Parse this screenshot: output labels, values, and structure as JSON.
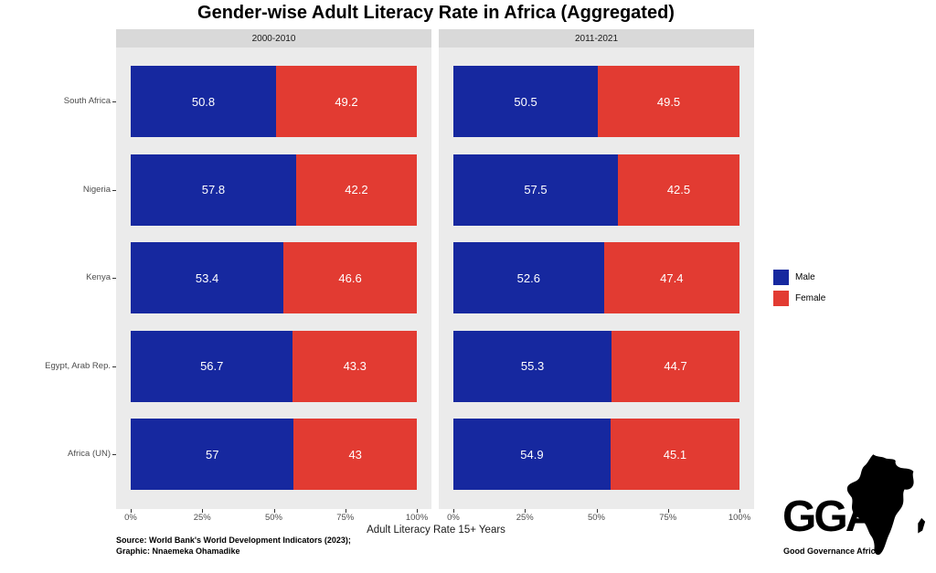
{
  "title": "Gender-wise Adult Literacy Rate in Africa (Aggregated)",
  "chart_data": {
    "type": "bar",
    "orientation": "horizontal",
    "stacked": true,
    "unit": "%",
    "xlabel": "Adult Literacy Rate 15+ Years",
    "xlim": [
      0,
      100
    ],
    "x_ticks": [
      "0%",
      "25%",
      "50%",
      "75%",
      "100%"
    ],
    "categories": [
      "South Africa",
      "Nigeria",
      "Kenya",
      "Egypt, Arab Rep.",
      "Africa (UN)"
    ],
    "facets": [
      {
        "label": "2000-2010",
        "series": [
          {
            "name": "Male",
            "color": "#16289F",
            "values": [
              50.8,
              57.8,
              53.4,
              56.7,
              57
            ]
          },
          {
            "name": "Female",
            "color": "#E23B32",
            "values": [
              49.2,
              42.2,
              46.6,
              43.3,
              43
            ]
          }
        ]
      },
      {
        "label": "2011-2021",
        "series": [
          {
            "name": "Male",
            "color": "#16289F",
            "values": [
              50.5,
              57.5,
              52.6,
              55.3,
              54.9
            ]
          },
          {
            "name": "Female",
            "color": "#E23B32",
            "values": [
              49.5,
              42.5,
              47.4,
              44.7,
              45.1
            ]
          }
        ]
      }
    ],
    "legend": {
      "position": "right",
      "entries": [
        {
          "label": "Male",
          "color": "#16289F"
        },
        {
          "label": "Female",
          "color": "#E23B32"
        }
      ]
    },
    "panel_background": "#EBEBEB",
    "strip_background": "#D9D9D9",
    "grid": false
  },
  "caption": {
    "source": "Source: World Bank's World Development Indicators (2023);",
    "graphic": "Graphic: Nnaemeka Ohamadike"
  },
  "logo": {
    "wordmark": "GGA.",
    "tagline": "Good Governance Africa",
    "icon": "africa-silhouette",
    "color": "#000000"
  },
  "colors": {
    "male": "#16289F",
    "female": "#E23B32",
    "axis_text": "#4D4D4D",
    "bar_label": "#FFFFFF"
  }
}
